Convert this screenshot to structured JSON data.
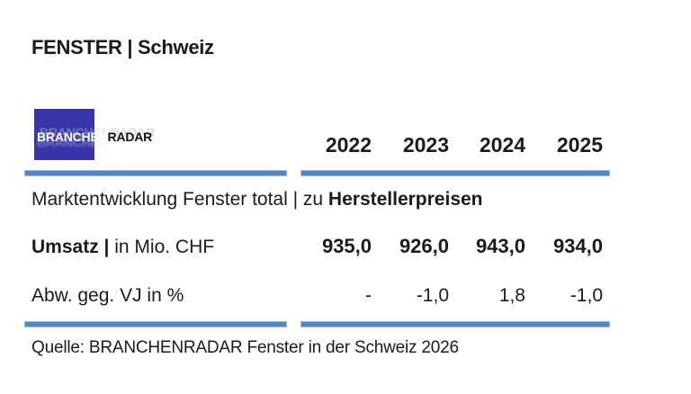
{
  "page": {
    "title": "FENSTER | Schweiz",
    "logo": {
      "part1": "BRANCHEN",
      "part2": "RADAR"
    },
    "source": "Quelle: BRANCHENRADAR Fenster in der Schweiz 2026"
  },
  "table": {
    "years": [
      "2022",
      "2023",
      "2024",
      "2025"
    ],
    "section": {
      "label_regular": "Marktentwicklung Fenster total | zu ",
      "label_bold": "Herstellerpreisen"
    },
    "rows": [
      {
        "label_bold": "Umsatz | ",
        "label_regular": "in Mio. CHF",
        "values": [
          "935,0",
          "926,0",
          "943,0",
          "934,0"
        ]
      },
      {
        "label_bold": "",
        "label_regular": "Abw. geg. VJ in %",
        "values": [
          "-",
          "-1,0",
          "1,8",
          "-1,0"
        ]
      }
    ]
  },
  "colors": {
    "accent_bar": "#5486c4",
    "accent_bar_border": "#9ab9de",
    "logo_blue": "#3735a8",
    "text": "#1b1b1b"
  }
}
